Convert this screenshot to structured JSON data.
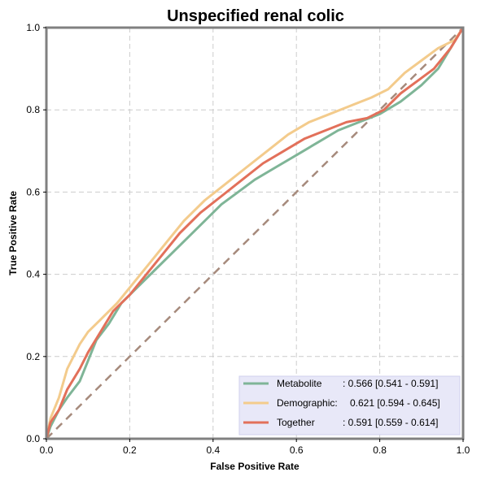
{
  "chart_data": {
    "type": "line",
    "title": "Unspecified renal colic",
    "xlabel": "False Positive Rate",
    "ylabel": "True Positive Rate",
    "xlim": [
      0,
      1
    ],
    "ylim": [
      0,
      1
    ],
    "x_ticks": [
      "0.0",
      "0.2",
      "0.4",
      "0.6",
      "0.8",
      "1.0"
    ],
    "y_ticks": [
      "0.0",
      "0.2",
      "0.4",
      "0.6",
      "0.8",
      "1.0"
    ],
    "grid": true,
    "legend_position": "bottom-right",
    "series": [
      {
        "name": "Metabolite",
        "label": ": 0.566 [0.541 - 0.591]",
        "color": "#7fb597",
        "points": [
          [
            0,
            0
          ],
          [
            0.01,
            0.03
          ],
          [
            0.03,
            0.07
          ],
          [
            0.05,
            0.1
          ],
          [
            0.08,
            0.14
          ],
          [
            0.1,
            0.19
          ],
          [
            0.12,
            0.24
          ],
          [
            0.15,
            0.28
          ],
          [
            0.18,
            0.33
          ],
          [
            0.22,
            0.37
          ],
          [
            0.26,
            0.41
          ],
          [
            0.3,
            0.45
          ],
          [
            0.34,
            0.49
          ],
          [
            0.38,
            0.53
          ],
          [
            0.42,
            0.57
          ],
          [
            0.46,
            0.6
          ],
          [
            0.5,
            0.63
          ],
          [
            0.55,
            0.66
          ],
          [
            0.6,
            0.69
          ],
          [
            0.65,
            0.72
          ],
          [
            0.7,
            0.75
          ],
          [
            0.75,
            0.77
          ],
          [
            0.8,
            0.79
          ],
          [
            0.85,
            0.82
          ],
          [
            0.9,
            0.86
          ],
          [
            0.94,
            0.9
          ],
          [
            0.97,
            0.95
          ],
          [
            1.0,
            1.0
          ]
        ]
      },
      {
        "name": "Demographic:",
        "label": "0.621 [0.594 - 0.645]",
        "color": "#f3cb8c",
        "points": [
          [
            0,
            0
          ],
          [
            0.01,
            0.05
          ],
          [
            0.03,
            0.1
          ],
          [
            0.05,
            0.17
          ],
          [
            0.08,
            0.23
          ],
          [
            0.1,
            0.26
          ],
          [
            0.13,
            0.29
          ],
          [
            0.17,
            0.33
          ],
          [
            0.21,
            0.38
          ],
          [
            0.25,
            0.43
          ],
          [
            0.29,
            0.48
          ],
          [
            0.33,
            0.53
          ],
          [
            0.38,
            0.58
          ],
          [
            0.43,
            0.62
          ],
          [
            0.48,
            0.66
          ],
          [
            0.53,
            0.7
          ],
          [
            0.58,
            0.74
          ],
          [
            0.63,
            0.77
          ],
          [
            0.68,
            0.79
          ],
          [
            0.73,
            0.81
          ],
          [
            0.78,
            0.83
          ],
          [
            0.82,
            0.85
          ],
          [
            0.86,
            0.89
          ],
          [
            0.9,
            0.92
          ],
          [
            0.94,
            0.95
          ],
          [
            0.98,
            0.97
          ],
          [
            1.0,
            1.0
          ]
        ]
      },
      {
        "name": "Together",
        "label": ": 0.591 [0.559 - 0.614]",
        "color": "#e2705a",
        "points": [
          [
            0,
            0
          ],
          [
            0.01,
            0.04
          ],
          [
            0.03,
            0.07
          ],
          [
            0.05,
            0.12
          ],
          [
            0.08,
            0.17
          ],
          [
            0.1,
            0.21
          ],
          [
            0.13,
            0.26
          ],
          [
            0.16,
            0.31
          ],
          [
            0.2,
            0.35
          ],
          [
            0.24,
            0.4
          ],
          [
            0.28,
            0.45
          ],
          [
            0.32,
            0.5
          ],
          [
            0.37,
            0.55
          ],
          [
            0.42,
            0.59
          ],
          [
            0.47,
            0.63
          ],
          [
            0.52,
            0.67
          ],
          [
            0.57,
            0.7
          ],
          [
            0.62,
            0.73
          ],
          [
            0.67,
            0.75
          ],
          [
            0.72,
            0.77
          ],
          [
            0.77,
            0.78
          ],
          [
            0.81,
            0.8
          ],
          [
            0.85,
            0.84
          ],
          [
            0.89,
            0.87
          ],
          [
            0.93,
            0.9
          ],
          [
            0.97,
            0.95
          ],
          [
            1.0,
            1.0
          ]
        ]
      },
      {
        "name": "",
        "style": "dashed",
        "color": "#a68a7c",
        "points": [
          [
            0,
            0
          ],
          [
            1,
            1
          ]
        ]
      }
    ]
  }
}
